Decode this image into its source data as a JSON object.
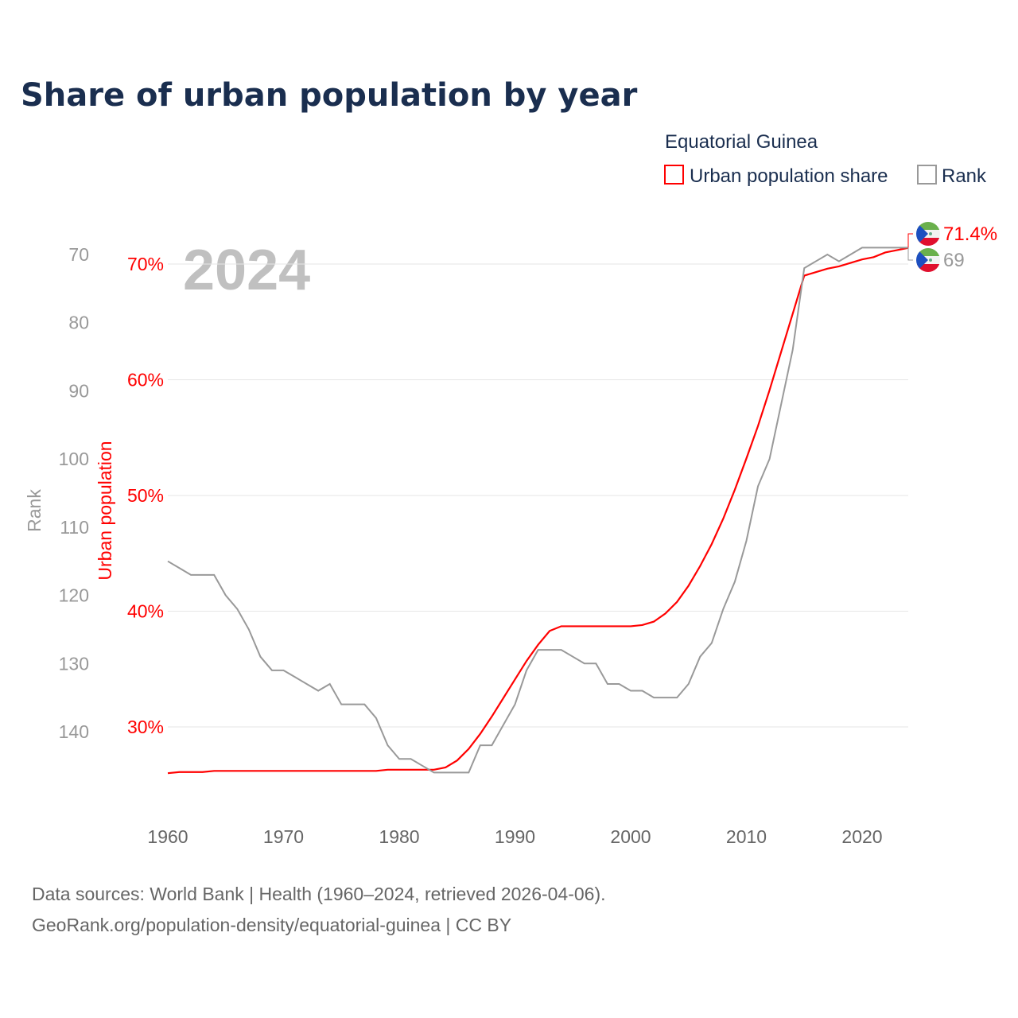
{
  "chart_data": {
    "type": "line",
    "title": "Share of urban population by year",
    "legend": {
      "heading": "Equatorial Guinea",
      "placement": "top-right",
      "entries": [
        {
          "label": "Urban population share",
          "color": "#ff0000"
        },
        {
          "label": "Rank",
          "color": "#999999"
        }
      ]
    },
    "year_label": "2024",
    "xlabel": "",
    "xlim": [
      1960,
      2024
    ],
    "xticks": [
      "1960",
      "1970",
      "1980",
      "1990",
      "2000",
      "2010",
      "2020"
    ],
    "y_left_outer": {
      "label": "Rank",
      "ticks": [
        "70",
        "80",
        "90",
        "100",
        "110",
        "120",
        "130",
        "140"
      ],
      "ylim_inverted": [
        67,
        152
      ]
    },
    "y_left_inner": {
      "label": "Urban population",
      "ticks": [
        "30%",
        "40%",
        "50%",
        "60%",
        "70%"
      ],
      "unit": "%"
    },
    "x": [
      1960,
      1961,
      1962,
      1963,
      1964,
      1965,
      1966,
      1967,
      1968,
      1969,
      1970,
      1971,
      1972,
      1973,
      1974,
      1975,
      1976,
      1977,
      1978,
      1979,
      1980,
      1981,
      1982,
      1983,
      1984,
      1985,
      1986,
      1987,
      1988,
      1989,
      1990,
      1991,
      1992,
      1993,
      1994,
      1995,
      1996,
      1997,
      1998,
      1999,
      2000,
      2001,
      2002,
      2003,
      2004,
      2005,
      2006,
      2007,
      2008,
      2009,
      2010,
      2011,
      2012,
      2013,
      2014,
      2015,
      2016,
      2017,
      2018,
      2019,
      2020,
      2021,
      2022,
      2023,
      2024
    ],
    "series": [
      {
        "name": "Urban population share",
        "color": "#ff0000",
        "values": [
          26.0,
          26.1,
          26.1,
          26.1,
          26.2,
          26.2,
          26.2,
          26.2,
          26.2,
          26.2,
          26.2,
          26.2,
          26.2,
          26.2,
          26.2,
          26.2,
          26.2,
          26.2,
          26.2,
          26.3,
          26.3,
          26.3,
          26.3,
          26.3,
          26.5,
          27.1,
          28.1,
          29.4,
          30.9,
          32.5,
          34.1,
          35.7,
          37.1,
          38.3,
          38.7,
          38.7,
          38.7,
          38.7,
          38.7,
          38.7,
          38.7,
          38.8,
          39.1,
          39.8,
          40.8,
          42.2,
          43.9,
          45.8,
          48.0,
          50.5,
          53.2,
          56.0,
          59.1,
          62.4,
          65.7,
          69.0,
          69.3,
          69.6,
          69.8,
          70.1,
          70.4,
          70.6,
          71.0,
          71.2,
          71.4
        ]
      },
      {
        "name": "Rank",
        "color": "#999999",
        "values": [
          115,
          116,
          117,
          117,
          117,
          120,
          122,
          125,
          129,
          131,
          131,
          132,
          133,
          134,
          133,
          136,
          136,
          136,
          138,
          142,
          144,
          144,
          145,
          146,
          146,
          146,
          146,
          142,
          142,
          139,
          136,
          131,
          128,
          128,
          128,
          129,
          130,
          130,
          133,
          133,
          134,
          134,
          135,
          135,
          135,
          133,
          129,
          127,
          122,
          118,
          112,
          104,
          100,
          92,
          84,
          72,
          71,
          70,
          71,
          70,
          69,
          69,
          69,
          69,
          69
        ]
      }
    ],
    "end_labels": {
      "urban": "71.4%",
      "rank": "69"
    }
  },
  "footer": {
    "line1": "Data sources: World Bank | Health (1960–2024, retrieved 2026-04-06).",
    "line2": "GeoRank.org/population-density/equatorial-guinea | CC BY"
  }
}
